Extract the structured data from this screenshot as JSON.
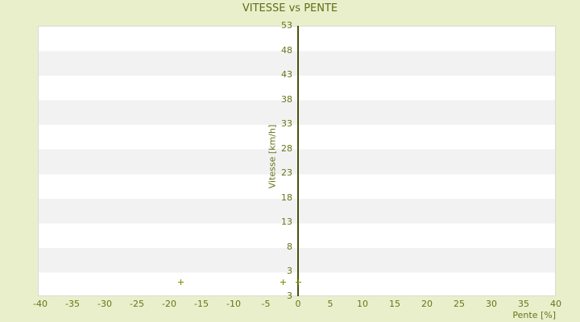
{
  "chart_data": {
    "type": "scatter",
    "title": "VITESSE vs PENTE",
    "xlabel": "Pente [%]",
    "ylabel": "Vitesse [km/h]",
    "x_ticks": [
      -40,
      -35,
      -30,
      -25,
      -20,
      -15,
      -10,
      -5,
      0,
      5,
      10,
      15,
      20,
      25,
      30,
      35,
      40
    ],
    "y_ticks": [
      53,
      48,
      43,
      38,
      33,
      28,
      23,
      18,
      13,
      8,
      3
    ],
    "y_axis_bottom_label": "3",
    "xlim": [
      -40.4,
      40
    ],
    "ylim": [
      -2,
      53
    ],
    "points": [
      {
        "x": -18.3,
        "y": 1.0
      },
      {
        "x": -2.4,
        "y": 1.0
      },
      {
        "x": 0.0,
        "y": 1.0
      }
    ],
    "grid": "horizontal-stripes",
    "legend_position": "none",
    "marker": "plus",
    "colors": {
      "background": "#e9efcb",
      "stripe_light": "#ffffff",
      "stripe_dark": "#f2f2f2",
      "plot_border": "#d8dbd6",
      "axis_line": "#47530e",
      "text": "#66751a",
      "marker": "#7f8e00"
    }
  }
}
